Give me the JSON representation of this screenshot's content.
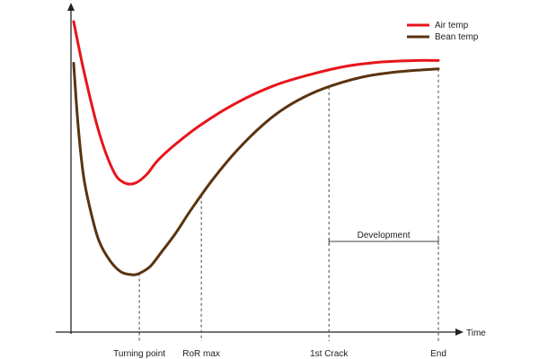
{
  "chart_data": {
    "type": "line",
    "title": "",
    "xlabel": "Time",
    "ylabel": "",
    "xlim": [
      0,
      100
    ],
    "ylim": [
      0,
      100
    ],
    "grid": false,
    "legend": "top-right",
    "series": [
      {
        "name": "Air temp",
        "color": "#e8141b",
        "x": [
          0,
          3,
          7,
          11,
          14,
          17,
          20,
          23,
          28,
          35,
          45,
          55,
          65,
          75,
          85,
          94,
          100
        ],
        "y": [
          100,
          81,
          60,
          46,
          42,
          42,
          45,
          50,
          56,
          63,
          71,
          77,
          81,
          84,
          85.5,
          86,
          86
        ]
      },
      {
        "name": "Bean temp",
        "color": "#5a3310",
        "x": [
          0,
          1,
          2,
          3,
          5,
          7,
          10,
          13,
          16,
          18,
          21,
          24,
          28,
          32,
          38,
          45,
          52,
          58,
          65,
          72,
          79,
          86,
          94,
          100
        ],
        "y": [
          85,
          66,
          52,
          42,
          30,
          21,
          14,
          10,
          9,
          9.5,
          12,
          17,
          24,
          32,
          43,
          54,
          63,
          69,
          74,
          77.5,
          80,
          81.5,
          82.5,
          83
        ]
      }
    ],
    "markers": [
      {
        "label": "Turning point",
        "x": 18
      },
      {
        "label": "RoR max",
        "x": 35
      },
      {
        "label": "1st Crack",
        "x": 70
      },
      {
        "label": "End",
        "x": 100
      }
    ],
    "annotation": {
      "label": "Development",
      "x_start": 70,
      "x_end": 100
    },
    "axis_color": "#222222",
    "guide_color": "#444444"
  }
}
